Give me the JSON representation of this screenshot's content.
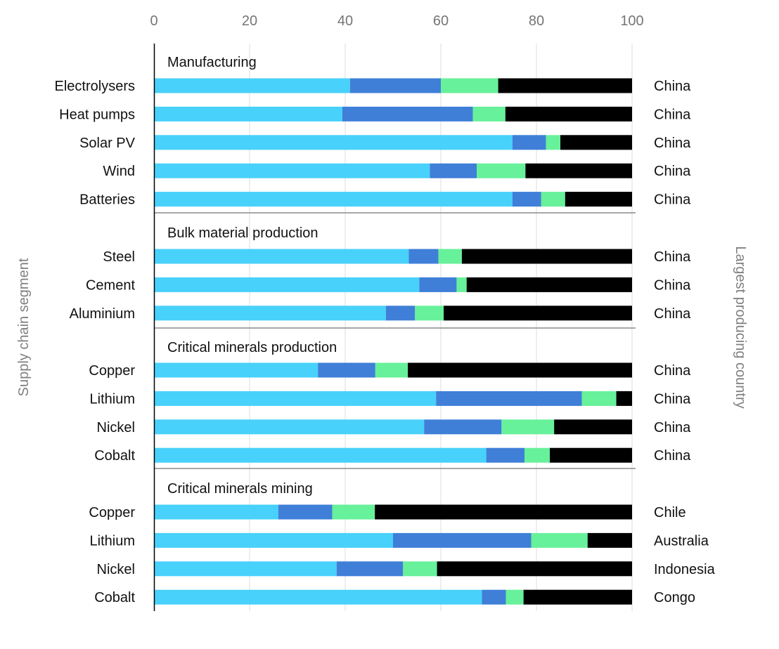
{
  "chart_data": {
    "type": "bar",
    "orientation": "horizontal",
    "stacked": true,
    "xlim": [
      0,
      100
    ],
    "xticks": [
      "0",
      "20",
      "40",
      "60",
      "80",
      "100"
    ],
    "ylabel": "Supply chain segment",
    "y2label": "Largest producing country",
    "grid": true,
    "colors": [
      "#48D1FA",
      "#3F7FD8",
      "#67F19A",
      "#000000"
    ],
    "groups": [
      {
        "label": "Manufacturing",
        "rows": [
          {
            "category": "Electrolysers",
            "values": [
              41,
              19,
              12,
              28
            ],
            "country": "China"
          },
          {
            "category": "Heat pumps",
            "values": [
              39.4,
              27.3,
              6.8,
              26.5
            ],
            "country": "China"
          },
          {
            "category": "Solar PV",
            "values": [
              75,
              7,
              3,
              15
            ],
            "country": "China"
          },
          {
            "category": "Wind",
            "values": [
              57.7,
              9.8,
              10.2,
              22.3
            ],
            "country": "China"
          },
          {
            "category": "Batteries",
            "values": [
              75,
              6,
              5,
              14
            ],
            "country": "China"
          }
        ]
      },
      {
        "label": "Bulk material production",
        "rows": [
          {
            "category": "Steel",
            "values": [
              53.3,
              6.2,
              4.9,
              35.6
            ],
            "country": "China"
          },
          {
            "category": "Cement",
            "values": [
              55.5,
              7.8,
              2.1,
              34.6
            ],
            "country": "China"
          },
          {
            "category": "Aluminium",
            "values": [
              48.5,
              6.1,
              6,
              39.4
            ],
            "country": "China"
          }
        ]
      },
      {
        "label": "Critical minerals production",
        "rows": [
          {
            "category": "Copper",
            "values": [
              34.3,
              12,
              6.8,
              46.9
            ],
            "country": "China"
          },
          {
            "category": "Lithium",
            "values": [
              59,
              30.5,
              7.2,
              3.3
            ],
            "country": "China"
          },
          {
            "category": "Nickel",
            "values": [
              56.5,
              16.2,
              11,
              16.3
            ],
            "country": "China"
          },
          {
            "category": "Cobalt",
            "values": [
              69.5,
              8,
              5.3,
              17.2
            ],
            "country": "China"
          }
        ]
      },
      {
        "label": "Critical minerals mining",
        "rows": [
          {
            "category": "Copper",
            "values": [
              26,
              11.3,
              8.9,
              53.8
            ],
            "country": "Chile"
          },
          {
            "category": "Lithium",
            "values": [
              50,
              28.9,
              11.8,
              9.3
            ],
            "country": "Australia"
          },
          {
            "category": "Nickel",
            "values": [
              38.2,
              13.9,
              7.1,
              40.8
            ],
            "country": "Indonesia"
          },
          {
            "category": "Cobalt",
            "values": [
              68.6,
              5,
              3.7,
              22.7
            ],
            "country": "Congo"
          }
        ]
      }
    ]
  }
}
